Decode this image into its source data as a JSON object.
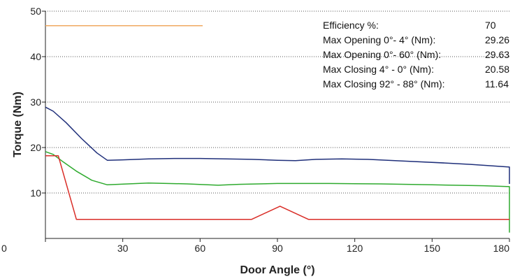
{
  "chart_data": {
    "type": "line",
    "xlabel": "Door Angle (°)",
    "ylabel": "Torque (Nm)",
    "xlim": [
      0,
      180
    ],
    "ylim": [
      0,
      50
    ],
    "xticks": [
      0,
      30,
      60,
      90,
      120,
      150,
      180
    ],
    "yticks": [
      10,
      20,
      30,
      40,
      50
    ],
    "grid": "horizontal-dotted",
    "series": [
      {
        "color": "#1f2f7a",
        "x": [
          0,
          3,
          8,
          14,
          20,
          24,
          30,
          40,
          50,
          60,
          70,
          80,
          90,
          97,
          105,
          115,
          125,
          140,
          155,
          165,
          175,
          180,
          180
        ],
        "y": [
          28.9,
          28,
          25.5,
          22,
          18.8,
          17.2,
          17.3,
          17.5,
          17.6,
          17.6,
          17.5,
          17.4,
          17.2,
          17.1,
          17.4,
          17.5,
          17.4,
          17.0,
          16.6,
          16.3,
          15.9,
          15.7,
          12.0
        ]
      },
      {
        "color": "#2eaa2e",
        "x": [
          0,
          3,
          7,
          12,
          18,
          24,
          28,
          40,
          55,
          67,
          75,
          90,
          110,
          130,
          150,
          170,
          180,
          180
        ],
        "y": [
          19.1,
          18.5,
          16.8,
          14.8,
          12.8,
          11.8,
          11.9,
          12.2,
          12.0,
          11.7,
          11.9,
          12.1,
          12.1,
          12.0,
          11.8,
          11.6,
          11.4,
          1.3
        ]
      },
      {
        "color": "#d92d27",
        "x": [
          0,
          5,
          12,
          30,
          60,
          80,
          91,
          102,
          120,
          150,
          180
        ],
        "y": [
          18.2,
          18.2,
          4.2,
          4.2,
          4.2,
          4.2,
          7.1,
          4.2,
          4.2,
          4.2,
          4.2
        ]
      },
      {
        "color": "#f0a860",
        "x": [
          0,
          61
        ],
        "y": [
          46.8,
          46.8
        ]
      }
    ],
    "annotations": [
      {
        "label": "Efficiency %:",
        "value": "70"
      },
      {
        "label": "Max Opening 0°- 4° (Nm):",
        "value": "29.26"
      },
      {
        "label": "Max Opening 0°- 60° (Nm):",
        "value": "29.63"
      },
      {
        "label": "Max Closing 4° - 0° (Nm):",
        "value": "20.58"
      },
      {
        "label": "Max Closing 92° - 88° (Nm):",
        "value": "11.64"
      }
    ]
  }
}
